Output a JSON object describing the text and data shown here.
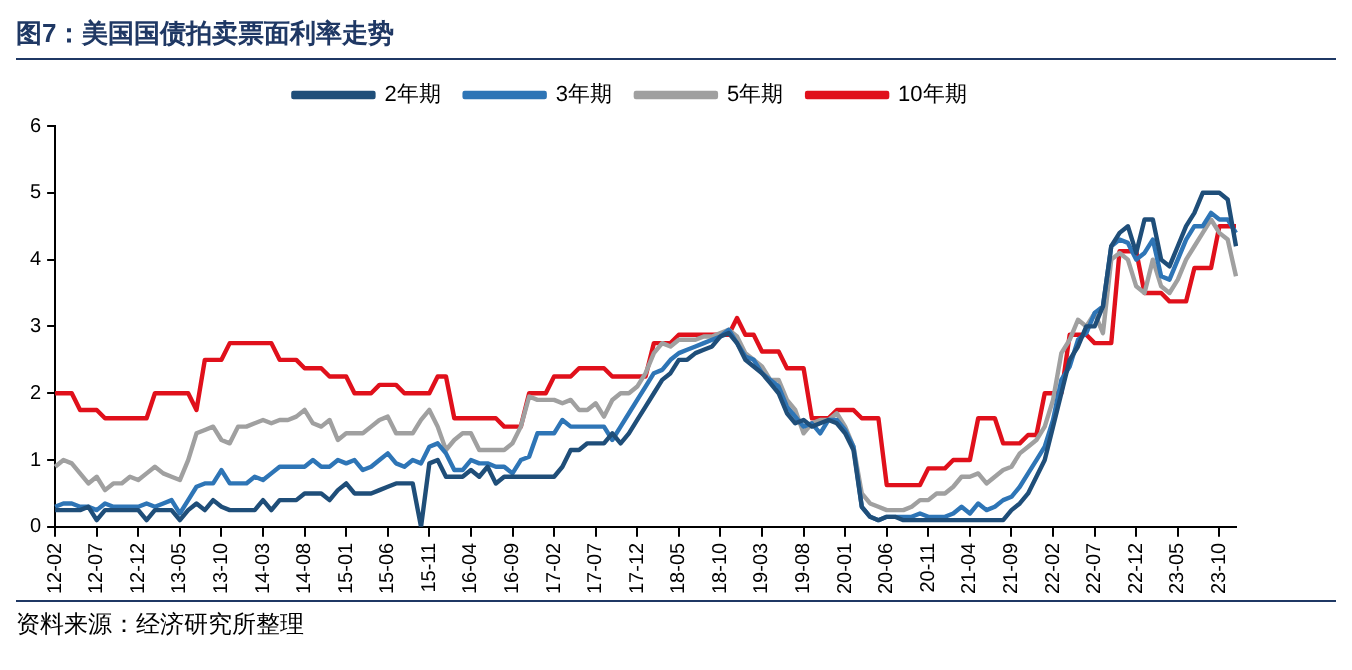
{
  "chart_data": {
    "type": "line",
    "title": "图7：美国国债拍卖票面利率走势",
    "annotations": [
      "资料来源：经济研究所整理"
    ],
    "categories": [
      "12-02",
      null,
      null,
      null,
      null,
      "12-07",
      null,
      null,
      null,
      null,
      "12-12",
      null,
      null,
      null,
      null,
      "13-05",
      null,
      null,
      null,
      null,
      "13-10",
      null,
      null,
      null,
      null,
      "14-03",
      null,
      null,
      null,
      null,
      "14-08",
      null,
      null,
      null,
      null,
      "15-01",
      null,
      null,
      null,
      null,
      "15-06",
      null,
      null,
      null,
      null,
      "15-11",
      null,
      null,
      null,
      null,
      "16-04",
      null,
      null,
      null,
      null,
      "16-09",
      null,
      null,
      null,
      null,
      "17-02",
      null,
      null,
      null,
      null,
      "17-07",
      null,
      null,
      null,
      null,
      "17-12",
      null,
      null,
      null,
      null,
      "18-05",
      null,
      null,
      null,
      null,
      "18-10",
      null,
      null,
      null,
      null,
      "19-03",
      null,
      null,
      null,
      null,
      "19-08",
      null,
      null,
      null,
      null,
      "20-01",
      null,
      null,
      null,
      null,
      "20-06",
      null,
      null,
      null,
      null,
      "20-11",
      null,
      null,
      null,
      null,
      "21-04",
      null,
      null,
      null,
      null,
      "21-09",
      null,
      null,
      null,
      null,
      "22-02",
      null,
      null,
      null,
      null,
      "22-07",
      null,
      null,
      null,
      null,
      "22-12",
      null,
      null,
      null,
      null,
      "23-05",
      null,
      null,
      null,
      null,
      "23-10",
      null,
      null
    ],
    "series": [
      {
        "name": "2年期",
        "color": "#1f4e79",
        "values": [
          0.25,
          0.25,
          0.25,
          0.25,
          0.3,
          0.1,
          0.25,
          0.25,
          0.25,
          0.25,
          0.25,
          0.1,
          0.25,
          0.25,
          0.25,
          0.1,
          0.25,
          0.35,
          0.25,
          0.4,
          0.3,
          0.25,
          0.25,
          0.25,
          0.25,
          0.4,
          0.25,
          0.4,
          0.4,
          0.4,
          0.5,
          0.5,
          0.5,
          0.4,
          0.55,
          0.65,
          0.5,
          0.5,
          0.5,
          0.55,
          0.6,
          0.65,
          0.65,
          0.65,
          0,
          0.95,
          1,
          0.75,
          0.75,
          0.75,
          0.85,
          0.75,
          0.9,
          0.65,
          0.75,
          0.75,
          0.75,
          0.75,
          0.75,
          0.75,
          0.75,
          0.9,
          1.15,
          1.15,
          1.25,
          1.25,
          1.25,
          1.4,
          1.25,
          1.4,
          1.6,
          1.8,
          2,
          2.2,
          2.3,
          2.5,
          2.5,
          2.6,
          2.65,
          2.7,
          2.85,
          2.9,
          2.75,
          2.5,
          2.4,
          2.3,
          2.15,
          2,
          1.7,
          1.55,
          1.6,
          1.5,
          1.55,
          1.6,
          1.55,
          1.4,
          1.15,
          0.3,
          0.15,
          0.1,
          0.15,
          0.15,
          0.1,
          0.1,
          0.1,
          0.1,
          0.1,
          0.1,
          0.1,
          0.1,
          0.1,
          0.1,
          0.1,
          0.1,
          0.1,
          0.25,
          0.35,
          0.5,
          0.75,
          1,
          1.5,
          2,
          2.5,
          2.7,
          3,
          3,
          3.3,
          4.2,
          4.4,
          4.5,
          4.1,
          4.6,
          4.6,
          4,
          3.9,
          4.2,
          4.5,
          4.7,
          5,
          5,
          5,
          4.9,
          4.2
        ]
      },
      {
        "name": "3年期",
        "color": "#2e75b6",
        "values": [
          0.3,
          0.35,
          0.35,
          0.3,
          0.3,
          0.25,
          0.35,
          0.3,
          0.3,
          0.3,
          0.3,
          0.35,
          0.3,
          0.35,
          0.4,
          0.2,
          0.4,
          0.6,
          0.65,
          0.65,
          0.85,
          0.65,
          0.65,
          0.65,
          0.75,
          0.7,
          0.8,
          0.9,
          0.9,
          0.9,
          0.9,
          1,
          0.9,
          0.9,
          1,
          0.95,
          1,
          0.85,
          0.9,
          1,
          1.1,
          0.95,
          0.9,
          1,
          0.95,
          1.2,
          1.25,
          1.1,
          0.85,
          0.85,
          1,
          0.95,
          0.95,
          0.9,
          0.9,
          0.8,
          1,
          1.05,
          1.4,
          1.4,
          1.4,
          1.6,
          1.5,
          1.5,
          1.5,
          1.5,
          1.5,
          1.3,
          1.5,
          1.7,
          1.9,
          2.1,
          2.3,
          2.35,
          2.5,
          2.6,
          2.65,
          2.7,
          2.75,
          2.8,
          2.85,
          2.95,
          2.75,
          2.55,
          2.5,
          2.3,
          2.2,
          2.1,
          1.8,
          1.65,
          1.5,
          1.55,
          1.4,
          1.6,
          1.6,
          1.45,
          1.2,
          0.3,
          0.15,
          0.1,
          0.15,
          0.15,
          0.15,
          0.15,
          0.2,
          0.15,
          0.15,
          0.15,
          0.2,
          0.3,
          0.2,
          0.35,
          0.25,
          0.3,
          0.4,
          0.45,
          0.6,
          0.8,
          1,
          1.2,
          1.6,
          2.2,
          2.4,
          2.8,
          2.9,
          3.2,
          3.3,
          4.2,
          4.3,
          4.25,
          4,
          4.1,
          4.3,
          3.75,
          3.7,
          4,
          4.3,
          4.5,
          4.5,
          4.7,
          4.6,
          4.6,
          4.4
        ]
      },
      {
        "name": "5年期",
        "color": "#a0a0a0",
        "values": [
          0.9,
          1,
          0.95,
          0.8,
          0.65,
          0.75,
          0.55,
          0.65,
          0.65,
          0.75,
          0.7,
          0.8,
          0.9,
          0.8,
          0.75,
          0.7,
          1,
          1.4,
          1.45,
          1.5,
          1.3,
          1.25,
          1.5,
          1.5,
          1.55,
          1.6,
          1.55,
          1.6,
          1.6,
          1.65,
          1.75,
          1.55,
          1.5,
          1.6,
          1.3,
          1.4,
          1.4,
          1.4,
          1.5,
          1.6,
          1.65,
          1.4,
          1.4,
          1.4,
          1.6,
          1.75,
          1.5,
          1.15,
          1.3,
          1.4,
          1.4,
          1.15,
          1.15,
          1.15,
          1.15,
          1.25,
          1.5,
          1.95,
          1.9,
          1.9,
          1.9,
          1.85,
          1.9,
          1.75,
          1.75,
          1.85,
          1.65,
          1.9,
          2,
          2,
          2.1,
          2.3,
          2.6,
          2.75,
          2.7,
          2.8,
          2.8,
          2.8,
          2.85,
          2.85,
          2.9,
          2.95,
          2.85,
          2.6,
          2.5,
          2.4,
          2.2,
          2.2,
          1.9,
          1.75,
          1.4,
          1.55,
          1.6,
          1.6,
          1.7,
          1.5,
          1.2,
          0.5,
          0.35,
          0.3,
          0.25,
          0.25,
          0.25,
          0.3,
          0.4,
          0.4,
          0.5,
          0.5,
          0.6,
          0.75,
          0.75,
          0.8,
          0.65,
          0.75,
          0.85,
          0.9,
          1.1,
          1.2,
          1.3,
          1.5,
          1.9,
          2.6,
          2.8,
          3.1,
          3,
          3.2,
          2.9,
          4,
          4.1,
          4,
          3.6,
          3.5,
          4,
          3.6,
          3.5,
          3.7,
          4,
          4.2,
          4.4,
          4.6,
          4.4,
          4.3,
          3.75
        ]
      },
      {
        "name": "10年期",
        "color": "#e0101b",
        "values": [
          2,
          2,
          2,
          1.75,
          1.75,
          1.75,
          1.625,
          1.625,
          1.625,
          1.625,
          1.625,
          1.625,
          2,
          2,
          2,
          2,
          2,
          1.75,
          2.5,
          2.5,
          2.5,
          2.75,
          2.75,
          2.75,
          2.75,
          2.75,
          2.75,
          2.5,
          2.5,
          2.5,
          2.375,
          2.375,
          2.375,
          2.25,
          2.25,
          2.25,
          2,
          2,
          2,
          2.125,
          2.125,
          2.125,
          2,
          2,
          2,
          2,
          2.25,
          2.25,
          1.625,
          1.625,
          1.625,
          1.625,
          1.625,
          1.625,
          1.5,
          1.5,
          1.5,
          2,
          2,
          2,
          2.25,
          2.25,
          2.25,
          2.375,
          2.375,
          2.375,
          2.375,
          2.25,
          2.25,
          2.25,
          2.25,
          2.25,
          2.75,
          2.75,
          2.75,
          2.875,
          2.875,
          2.875,
          2.875,
          2.875,
          2.875,
          2.875,
          3.125,
          2.875,
          2.875,
          2.625,
          2.625,
          2.625,
          2.375,
          2.375,
          2.375,
          1.625,
          1.625,
          1.625,
          1.75,
          1.75,
          1.75,
          1.625,
          1.625,
          1.625,
          0.625,
          0.625,
          0.625,
          0.625,
          0.625,
          0.875,
          0.875,
          0.875,
          1,
          1,
          1,
          1.625,
          1.625,
          1.625,
          1.25,
          1.25,
          1.25,
          1.375,
          1.375,
          2,
          2,
          2,
          2.875,
          2.875,
          2.875,
          2.75,
          2.75,
          2.75,
          4.125,
          4.125,
          4.125,
          3.5,
          3.5,
          3.5,
          3.375,
          3.375,
          3.375,
          3.875,
          3.875,
          3.875,
          4.5,
          4.5,
          4.5
        ]
      }
    ],
    "ylim": [
      0,
      6
    ],
    "yticks": [
      0,
      1,
      2,
      3,
      4,
      5,
      6
    ],
    "legend": "top",
    "grid": false,
    "marker": "none",
    "line_style": "solid"
  }
}
